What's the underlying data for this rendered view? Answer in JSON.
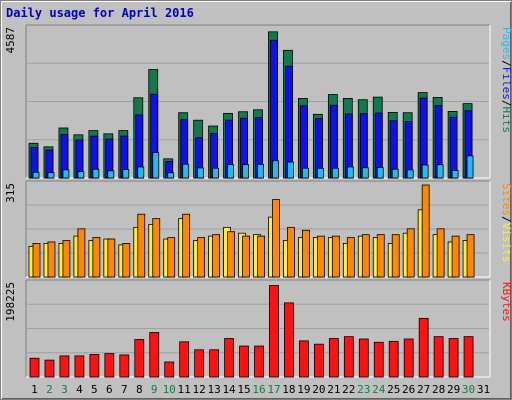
{
  "title": "Daily usage for April 2016",
  "colors": {
    "hits": "#117a4d",
    "files": "#1010ee",
    "pages": "#22bbee",
    "visits": "#ffee33",
    "sites": "#ff8800",
    "kbytes": "#ff1111",
    "weekend_day_label": "#117a4d",
    "weekday_day_label": "#000000"
  },
  "chart_data": [
    {
      "type": "bar",
      "panel": "top",
      "max_label": "4587",
      "ylim": [
        0,
        4587
      ],
      "legend": [
        {
          "name": "Pages",
          "color": "#22bbee"
        },
        {
          "name": "Files",
          "color": "#1010ee"
        },
        {
          "name": "Hits",
          "color": "#117a4d"
        }
      ],
      "separator": "/",
      "categories": [
        "1",
        "2",
        "3",
        "4",
        "5",
        "6",
        "7",
        "8",
        "9",
        "10",
        "11",
        "12",
        "13",
        "14",
        "15",
        "16",
        "17",
        "18",
        "19",
        "20",
        "21",
        "22",
        "23",
        "24",
        "25",
        "26",
        "27",
        "28",
        "29",
        "30",
        "31"
      ],
      "series": [
        {
          "name": "Hits",
          "values": [
            1070,
            960,
            1540,
            1330,
            1460,
            1360,
            1460,
            2470,
            3340,
            590,
            2010,
            1780,
            1600,
            1990,
            2040,
            2100,
            4500,
            3930,
            2450,
            1960,
            2570,
            2450,
            2410,
            2490,
            2020,
            2010,
            2630,
            2480,
            2050,
            2290,
            0
          ]
        },
        {
          "name": "Files",
          "values": [
            940,
            860,
            1340,
            1170,
            1290,
            1200,
            1290,
            1940,
            2580,
            510,
            1800,
            1240,
            1370,
            1780,
            1840,
            1860,
            4240,
            3440,
            2220,
            1830,
            2240,
            1970,
            1980,
            2000,
            1760,
            1740,
            2460,
            2230,
            1870,
            2070,
            0
          ]
        },
        {
          "name": "Pages",
          "values": [
            175,
            165,
            250,
            195,
            270,
            220,
            260,
            340,
            780,
            160,
            425,
            310,
            300,
            410,
            410,
            420,
            530,
            490,
            300,
            295,
            300,
            340,
            315,
            325,
            270,
            250,
            400,
            410,
            235,
            680,
            0
          ]
        }
      ]
    },
    {
      "type": "bar",
      "panel": "middle",
      "max_label": "315",
      "ylim": [
        0,
        315
      ],
      "legend": [
        {
          "name": "Sites",
          "color": "#ff8800"
        },
        {
          "name": "Visits",
          "color": "#ffee33"
        }
      ],
      "separator": "/",
      "categories": [
        "1",
        "2",
        "3",
        "4",
        "5",
        "6",
        "7",
        "8",
        "9",
        "10",
        "11",
        "12",
        "13",
        "14",
        "15",
        "16",
        "17",
        "18",
        "19",
        "20",
        "21",
        "22",
        "23",
        "24",
        "25",
        "26",
        "27",
        "28",
        "29",
        "30",
        "31"
      ],
      "series": [
        {
          "name": "Visits",
          "values": [
            105,
            115,
            115,
            140,
            125,
            130,
            110,
            170,
            180,
            130,
            200,
            125,
            140,
            170,
            150,
            145,
            205,
            125,
            135,
            135,
            135,
            115,
            140,
            135,
            115,
            150,
            230,
            145,
            120,
            125,
            0
          ]
        },
        {
          "name": "Sites",
          "values": [
            115,
            120,
            125,
            165,
            135,
            130,
            115,
            215,
            200,
            135,
            215,
            135,
            145,
            155,
            140,
            140,
            265,
            170,
            160,
            140,
            140,
            135,
            145,
            145,
            145,
            165,
            315,
            165,
            140,
            145,
            0
          ]
        }
      ]
    },
    {
      "type": "bar",
      "panel": "bottom",
      "max_label": "198225",
      "ylim": [
        0,
        198225
      ],
      "legend": [
        {
          "name": "KBytes",
          "color": "#ff1111"
        }
      ],
      "categories": [
        "1",
        "2",
        "3",
        "4",
        "5",
        "6",
        "7",
        "8",
        "9",
        "10",
        "11",
        "12",
        "13",
        "14",
        "15",
        "16",
        "17",
        "18",
        "19",
        "20",
        "21",
        "22",
        "23",
        "24",
        "25",
        "26",
        "27",
        "28",
        "29",
        "30",
        "31"
      ],
      "series": [
        {
          "name": "KBytes",
          "values": [
            40000,
            36000,
            45000,
            45000,
            48000,
            50000,
            47000,
            80000,
            95000,
            32000,
            75000,
            58000,
            58000,
            82000,
            66000,
            66000,
            195000,
            158000,
            77000,
            70000,
            82000,
            86000,
            81000,
            74000,
            76000,
            81000,
            125000,
            86000,
            82000,
            86000,
            0
          ]
        }
      ]
    }
  ]
}
